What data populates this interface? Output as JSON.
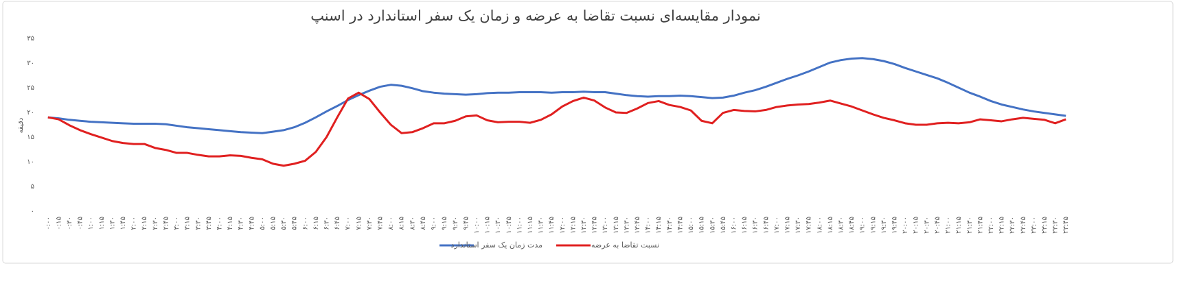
{
  "chart_data": {
    "type": "line",
    "title": "نمودار مقایسه‌ای نسبت تقاضا به عرضه و زمان یک سفر استاندارد در اسنپ",
    "y_label": "دقیقه",
    "categories": [
      "۰:۰۰",
      "۰:۱۵",
      "۰:۳۰",
      "۰:۴۵",
      "۱:۰۰",
      "۱:۱۵",
      "۱:۳۰",
      "۱:۴۵",
      "۲:۰۰",
      "۲:۱۵",
      "۲:۳۰",
      "۲:۴۵",
      "۳:۰۰",
      "۳:۱۵",
      "۳:۳۰",
      "۳:۴۵",
      "۴:۰۰",
      "۴:۱۵",
      "۴:۳۰",
      "۴:۴۵",
      "۵:۰۰",
      "۵:۱۵",
      "۵:۳۰",
      "۵:۴۵",
      "۶:۰۰",
      "۶:۱۵",
      "۶:۳۰",
      "۶:۴۵",
      "۷:۰۰",
      "۷:۱۵",
      "۷:۳۰",
      "۷:۴۵",
      "۸:۰۰",
      "۸:۱۵",
      "۸:۳۰",
      "۸:۴۵",
      "۹:۰۰",
      "۹:۱۵",
      "۹:۳۰",
      "۹:۴۵",
      "۱۰:۰۰",
      "۱۰:۱۵",
      "۱۰:۳۰",
      "۱۰:۴۵",
      "۱۱:۰۰",
      "۱۱:۱۵",
      "۱۱:۳۰",
      "۱۱:۴۵",
      "۱۲:۰۰",
      "۱۲:۱۵",
      "۱۲:۳۰",
      "۱۲:۴۵",
      "۱۳:۰۰",
      "۱۳:۱۵",
      "۱۳:۳۰",
      "۱۳:۴۵",
      "۱۴:۰۰",
      "۱۴:۱۵",
      "۱۴:۳۰",
      "۱۴:۴۵",
      "۱۵:۰۰",
      "۱۵:۱۵",
      "۱۵:۳۰",
      "۱۵:۴۵",
      "۱۶:۰۰",
      "۱۶:۱۵",
      "۱۶:۳۰",
      "۱۶:۴۵",
      "۱۷:۰۰",
      "۱۷:۱۵",
      "۱۷:۳۰",
      "۱۷:۴۵",
      "۱۸:۰۰",
      "۱۸:۱۵",
      "۱۸:۳۰",
      "۱۸:۴۵",
      "۱۹:۰۰",
      "۱۹:۱۵",
      "۱۹:۳۰",
      "۱۹:۴۵",
      "۲۰:۰۰",
      "۲۰:۱۵",
      "۲۰:۳۰",
      "۲۰:۴۵",
      "۲۱:۰۰",
      "۲۱:۱۵",
      "۲۱:۳۰",
      "۲۱:۴۵",
      "۲۲:۰۰",
      "۲۲:۱۵",
      "۲۲:۳۰",
      "۲۲:۴۵",
      "۲۳:۰۰",
      "۲۳:۱۵",
      "۲۳:۳۰",
      "۲۳:۴۵"
    ],
    "series": [
      {
        "name": "مدت زمان یک سفر استاندارد",
        "color": "#4472c4",
        "values": [
          19.0,
          18.8,
          18.5,
          18.3,
          18.1,
          18.0,
          17.9,
          17.8,
          17.7,
          17.7,
          17.7,
          17.6,
          17.3,
          17.0,
          16.8,
          16.6,
          16.4,
          16.2,
          16.0,
          15.9,
          15.8,
          16.1,
          16.4,
          17.0,
          17.9,
          19.0,
          20.2,
          21.3,
          22.5,
          23.5,
          24.4,
          25.2,
          25.6,
          25.4,
          24.9,
          24.3,
          24.0,
          23.8,
          23.7,
          23.6,
          23.7,
          23.9,
          24.0,
          24.0,
          24.1,
          24.1,
          24.1,
          24.0,
          24.1,
          24.1,
          24.2,
          24.1,
          24.1,
          23.8,
          23.5,
          23.3,
          23.2,
          23.3,
          23.3,
          23.4,
          23.3,
          23.1,
          22.9,
          23.0,
          23.4,
          24.0,
          24.5,
          25.2,
          26.0,
          26.8,
          27.5,
          28.3,
          29.2,
          30.1,
          30.6,
          30.9,
          31.0,
          30.8,
          30.4,
          29.8,
          29.0,
          28.3,
          27.6,
          26.9,
          26.0,
          25.0,
          24.0,
          23.2,
          22.3,
          21.6,
          21.1,
          20.6,
          20.2,
          19.9,
          19.6,
          19.3
        ]
      },
      {
        "name": "نسبت تقاضا به عرضه",
        "color": "#e02020",
        "values": [
          19.0,
          18.6,
          17.4,
          16.4,
          15.6,
          14.9,
          14.2,
          13.8,
          13.6,
          13.6,
          12.8,
          12.4,
          11.8,
          11.8,
          11.4,
          11.1,
          11.1,
          11.3,
          11.2,
          10.8,
          10.5,
          9.6,
          9.2,
          9.6,
          10.2,
          12.0,
          15.0,
          19.0,
          22.8,
          24.0,
          22.7,
          20.0,
          17.5,
          15.8,
          16.0,
          16.8,
          17.8,
          17.8,
          18.3,
          19.2,
          19.4,
          18.4,
          18.0,
          18.1,
          18.1,
          17.9,
          18.5,
          19.6,
          21.2,
          22.3,
          23.0,
          22.4,
          21.0,
          20.0,
          19.9,
          20.8,
          21.9,
          22.3,
          21.5,
          21.1,
          20.4,
          18.3,
          17.8,
          19.9,
          20.5,
          20.3,
          20.2,
          20.5,
          21.1,
          21.4,
          21.6,
          21.7,
          22.0,
          22.4,
          21.8,
          21.2,
          20.4,
          19.6,
          18.9,
          18.4,
          17.8,
          17.5,
          17.5,
          17.8,
          17.9,
          17.8,
          18.0,
          18.6,
          18.4,
          18.2,
          18.6,
          18.9,
          18.7,
          18.5,
          17.8,
          18.6
        ]
      }
    ],
    "ylim": [
      0,
      35
    ],
    "yticks": [
      {
        "value": 0,
        "label": "۰"
      },
      {
        "value": 5,
        "label": "۵"
      },
      {
        "value": 10,
        "label": "۱۰"
      },
      {
        "value": 15,
        "label": "۱۵"
      },
      {
        "value": 20,
        "label": "۲۰"
      },
      {
        "value": 25,
        "label": "۲۵"
      },
      {
        "value": 30,
        "label": "۳۰"
      },
      {
        "value": 35,
        "label": "۳۵"
      }
    ],
    "grid": false
  }
}
